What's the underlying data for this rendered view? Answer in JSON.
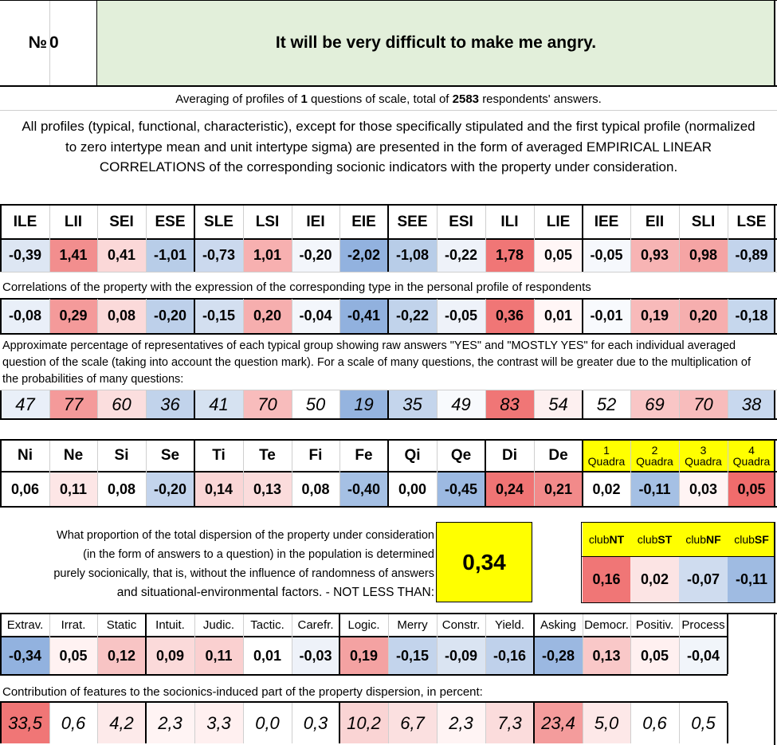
{
  "header": {
    "no_label": "№",
    "no_value": "0",
    "title": "It will be very difficult to make me angry."
  },
  "summary": {
    "prefix": "Averaging of profiles of",
    "questions": "1",
    "middle": "questions of scale, total of",
    "respondents": "2583",
    "suffix": "respondents' answers.",
    "description": "All profiles (typical, functional, characteristic), except for those specifically stipulated and the first typical profile (normalized to zero intertype mean and unit intertype sigma) are presented in the form of averaged EMPIRICAL LINEAR CORRELATIONS of the corresponding socionic indicators with the property under consideration."
  },
  "types": {
    "headers": [
      "ILE",
      "LII",
      "SEI",
      "ESE",
      "SLE",
      "LSI",
      "IEI",
      "EIE",
      "SEE",
      "ESI",
      "ILI",
      "LIE",
      "IEE",
      "EII",
      "SLI",
      "LSE"
    ],
    "values": [
      "-0,39",
      "1,41",
      "0,41",
      "-1,01",
      "-0,73",
      "1,01",
      "-0,20",
      "-2,02",
      "-1,08",
      "-0,22",
      "1,78",
      "0,05",
      "-0,05",
      "0,93",
      "0,98",
      "-0,89"
    ],
    "colors": [
      "#dde6f3",
      "#f28e8e",
      "#fbd8d8",
      "#b8cde8",
      "#cbd9ee",
      "#f7b0b0",
      "#f3f6fb",
      "#92b2df",
      "#b8cde8",
      "#eef2f9",
      "#f07676",
      "#fff6f6",
      "#f6f8fc",
      "#f7b4b4",
      "#f5a4a4",
      "#c3d4ec"
    ]
  },
  "corr": {
    "note": "Correlations of the property with the expression of the corresponding type in the personal profile of respondents",
    "values": [
      "-0,08",
      "0,29",
      "0,08",
      "-0,20",
      "-0,15",
      "0,20",
      "-0,04",
      "-0,41",
      "-0,22",
      "-0,05",
      "0,36",
      "0,01",
      "-0,01",
      "0,19",
      "0,20",
      "-0,18"
    ],
    "colors": [
      "#e9eff8",
      "#f49a9a",
      "#fbdada",
      "#bdd0ea",
      "#d3dff0",
      "#f6aeae",
      "#f3f6fb",
      "#91b1de",
      "#c1d3eb",
      "#eef2f9",
      "#f07676",
      "#fff6f6",
      "#f8fafd",
      "#f8baba",
      "#f6aeae",
      "#c6d7ed"
    ]
  },
  "percent": {
    "note": "Approximate percentage of representatives of each typical group showing raw answers \"YES\" and \"MOSTLY YES\" for each individual averaged question of the scale (taking into account the question mark). For a scale of many questions, the contrast will be greater due to the multiplication of the probabilities of many questions:",
    "values": [
      "47",
      "77",
      "60",
      "36",
      "41",
      "70",
      "50",
      "19",
      "35",
      "49",
      "83",
      "54",
      "52",
      "69",
      "70",
      "38"
    ],
    "colors": [
      "#e9eff8",
      "#f49a9a",
      "#fbdede",
      "#c1d3eb",
      "#d6e2f1",
      "#f8bcbc",
      "#ffffff",
      "#95b4df",
      "#c4d5ec",
      "#f8fafd",
      "#f07676",
      "#fdf0f0",
      "#ffffff",
      "#f9c6c6",
      "#f8bcbc",
      "#c8d8ee"
    ]
  },
  "functions": {
    "headers": [
      "Ni",
      "Ne",
      "Si",
      "Se",
      "Ti",
      "Te",
      "Fi",
      "Fe",
      "Qi",
      "Qe",
      "Di",
      "De"
    ],
    "values": [
      "0,06",
      "0,11",
      "0,08",
      "-0,20",
      "0,14",
      "0,13",
      "0,08",
      "-0,40",
      "0,00",
      "-0,45",
      "0,24",
      "0,21"
    ],
    "colors": [
      "#ffffff",
      "#fde6e6",
      "#ffffff",
      "#c3d4ec",
      "#fad6d6",
      "#fbdcdc",
      "#ffffff",
      "#a5c0e4",
      "#ffffff",
      "#9cb9e1",
      "#f07474",
      "#f28a8a"
    ]
  },
  "quadras": {
    "nums": [
      "1",
      "2",
      "3",
      "4"
    ],
    "word": "Quadra",
    "values": [
      "0,02",
      "-0,11",
      "0,03",
      "0,05"
    ],
    "colors": [
      "#ffffff",
      "#a5c0e4",
      "#fff4f4",
      "#f06c6c"
    ],
    "header_color": "#ffff00"
  },
  "dispersion": {
    "line1": "What proportion of the total dispersion of the property under consideration",
    "line2": "(in the form of answers to a question) in the population is determined",
    "line3": "purely socionically, that is, without the influence of randomness of answers",
    "line4": "and situational-environmental factors. - NOT LESS THAN:",
    "value": "0,34"
  },
  "clubs": {
    "prefix": "club",
    "names": [
      "NT",
      "ST",
      "NF",
      "SF"
    ],
    "values": [
      "0,16",
      "0,02",
      "-0,07",
      "-0,11"
    ],
    "colors": [
      "#f07676",
      "#fce4e4",
      "#cfdcef",
      "#9fbbe2"
    ]
  },
  "features": {
    "headers": [
      "Extrav.",
      "Irrat.",
      "Static",
      "Intuit.",
      "Judic.",
      "Tactic.",
      "Carefr.",
      "Logic.",
      "Merry",
      "Constr.",
      "Yield.",
      "Asking",
      "Democr.",
      "Positiv.",
      "Process"
    ],
    "values": [
      "-0,34",
      "0,05",
      "0,12",
      "0,09",
      "0,11",
      "0,01",
      "-0,03",
      "0,19",
      "-0,15",
      "-0,09",
      "-0,16",
      "-0,28",
      "0,13",
      "0,05",
      "-0,04"
    ],
    "colors": [
      "#92b2df",
      "#fff2f2",
      "#f8c4c4",
      "#fbdada",
      "#fad0d0",
      "#ffffff",
      "#eef2f9",
      "#f4a2a2",
      "#c3d4ec",
      "#dae4f2",
      "#bfd1eb",
      "#9bb8e1",
      "#f9c8c8",
      "#fff0f0",
      "#f1f5fa"
    ]
  },
  "contribution": {
    "note": "Contribution of features to the socionics-induced part of the property dispersion, in percent:",
    "values": [
      "33,5",
      "0,6",
      "4,2",
      "2,3",
      "3,3",
      "0,0",
      "0,3",
      "10,2",
      "6,7",
      "2,3",
      "7,3",
      "23,4",
      "5,0",
      "0,6",
      "0,5"
    ],
    "colors": [
      "#f07676",
      "#ffffff",
      "#fdeaea",
      "#fff4f4",
      "#fff0f0",
      "#ffffff",
      "#ffffff",
      "#fad4d4",
      "#fbe0e0",
      "#fff4f4",
      "#fbdcdc",
      "#f49c9c",
      "#fde8e8",
      "#ffffff",
      "#ffffff"
    ]
  }
}
